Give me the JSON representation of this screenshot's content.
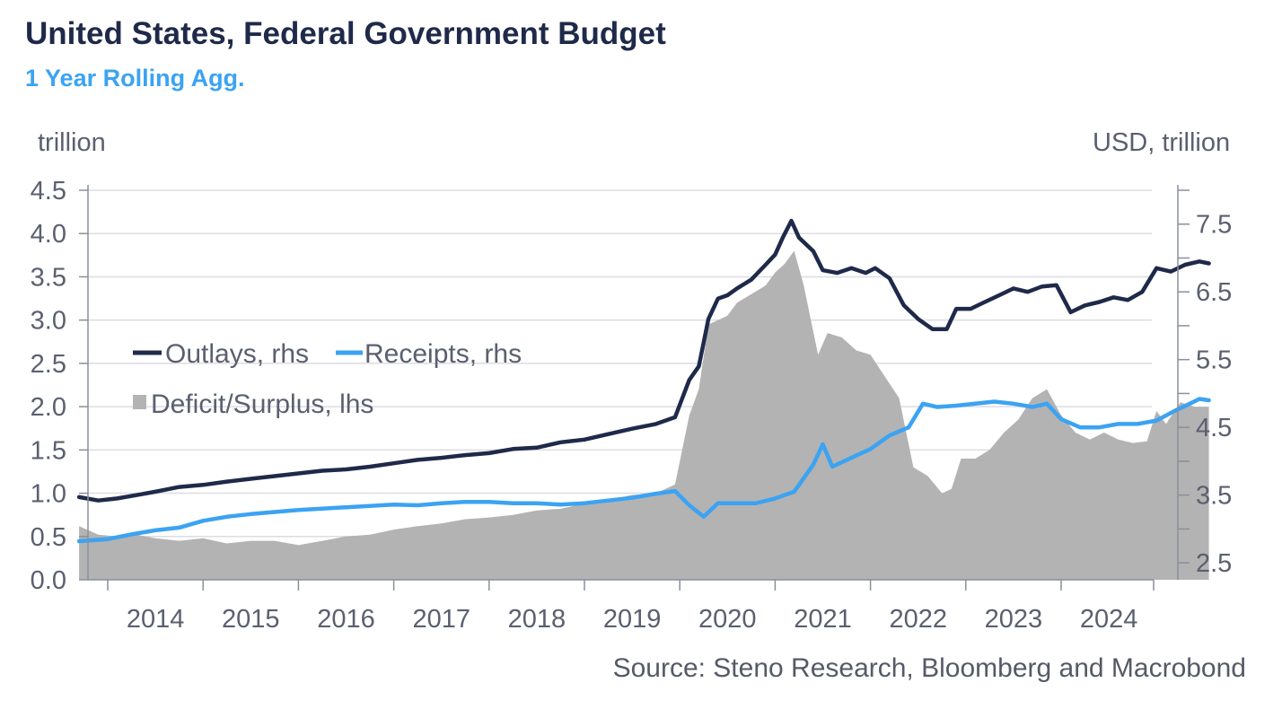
{
  "title": "United States, Federal Government Budget",
  "subtitle": "1 Year Rolling Agg.",
  "source": "Source: Steno Research, Bloomberg and Macrobond",
  "chart_data": {
    "type": "line",
    "left_axis": {
      "label": "trillion",
      "min": 0,
      "max": 4.5,
      "ticks": [
        "0.0",
        "0.5",
        "1.0",
        "1.5",
        "2.0",
        "2.5",
        "3.0",
        "3.5",
        "4.0",
        "4.5"
      ]
    },
    "right_axis": {
      "label": "USD, trillion",
      "min": 2.25,
      "max": 8.0,
      "ticks": [
        "2.5",
        "3.5",
        "4.5",
        "5.5",
        "6.5",
        "7.5"
      ]
    },
    "x_axis": {
      "ticks": [
        "2014",
        "2015",
        "2016",
        "2017",
        "2018",
        "2019",
        "2020",
        "2021",
        "2022",
        "2023",
        "2024"
      ]
    },
    "grid": true,
    "legend": [
      {
        "label": "Outlays, rhs",
        "color": "#1f2a4a",
        "kind": "line"
      },
      {
        "label": "Receipts, rhs",
        "color": "#3ba3f2",
        "kind": "line"
      },
      {
        "label": "Deficit/Surplus, lhs",
        "color": "#b3b3b3",
        "kind": "area"
      }
    ],
    "series": [
      {
        "name": "Outlays, rhs",
        "axis": "right",
        "color": "#1f2a4a",
        "points": [
          [
            2013.7,
            3.47
          ],
          [
            2013.9,
            3.42
          ],
          [
            2014.1,
            3.45
          ],
          [
            2014.3,
            3.5
          ],
          [
            2014.5,
            3.55
          ],
          [
            2014.75,
            3.62
          ],
          [
            2015.0,
            3.65
          ],
          [
            2015.25,
            3.7
          ],
          [
            2015.5,
            3.74
          ],
          [
            2015.75,
            3.78
          ],
          [
            2016.0,
            3.82
          ],
          [
            2016.25,
            3.86
          ],
          [
            2016.5,
            3.88
          ],
          [
            2016.75,
            3.92
          ],
          [
            2017.0,
            3.97
          ],
          [
            2017.25,
            4.02
          ],
          [
            2017.5,
            4.05
          ],
          [
            2017.75,
            4.09
          ],
          [
            2018.0,
            4.12
          ],
          [
            2018.25,
            4.18
          ],
          [
            2018.5,
            4.2
          ],
          [
            2018.75,
            4.28
          ],
          [
            2019.0,
            4.32
          ],
          [
            2019.25,
            4.4
          ],
          [
            2019.5,
            4.48
          ],
          [
            2019.75,
            4.55
          ],
          [
            2019.95,
            4.65
          ],
          [
            2020.1,
            5.2
          ],
          [
            2020.2,
            5.4
          ],
          [
            2020.3,
            6.1
          ],
          [
            2020.4,
            6.4
          ],
          [
            2020.5,
            6.45
          ],
          [
            2020.6,
            6.55
          ],
          [
            2020.75,
            6.68
          ],
          [
            2020.9,
            6.9
          ],
          [
            2021.0,
            7.05
          ],
          [
            2021.08,
            7.3
          ],
          [
            2021.17,
            7.55
          ],
          [
            2021.25,
            7.3
          ],
          [
            2021.4,
            7.1
          ],
          [
            2021.5,
            6.82
          ],
          [
            2021.65,
            6.78
          ],
          [
            2021.8,
            6.85
          ],
          [
            2021.95,
            6.78
          ],
          [
            2022.05,
            6.85
          ],
          [
            2022.2,
            6.7
          ],
          [
            2022.35,
            6.3
          ],
          [
            2022.5,
            6.1
          ],
          [
            2022.65,
            5.95
          ],
          [
            2022.8,
            5.95
          ],
          [
            2022.9,
            6.25
          ],
          [
            2023.05,
            6.25
          ],
          [
            2023.2,
            6.35
          ],
          [
            2023.35,
            6.45
          ],
          [
            2023.5,
            6.55
          ],
          [
            2023.65,
            6.5
          ],
          [
            2023.8,
            6.58
          ],
          [
            2023.95,
            6.6
          ],
          [
            2024.1,
            6.2
          ],
          [
            2024.25,
            6.3
          ],
          [
            2024.4,
            6.35
          ],
          [
            2024.55,
            6.42
          ],
          [
            2024.7,
            6.38
          ],
          [
            2024.85,
            6.5
          ],
          [
            2025.0,
            6.85
          ],
          [
            2025.15,
            6.8
          ],
          [
            2025.3,
            6.9
          ],
          [
            2025.45,
            6.95
          ],
          [
            2025.55,
            6.92
          ]
        ]
      },
      {
        "name": "Receipts, rhs",
        "axis": "right",
        "color": "#3ba3f2",
        "points": [
          [
            2013.7,
            2.82
          ],
          [
            2014.0,
            2.85
          ],
          [
            2014.25,
            2.92
          ],
          [
            2014.5,
            2.98
          ],
          [
            2014.75,
            3.02
          ],
          [
            2015.0,
            3.12
          ],
          [
            2015.25,
            3.18
          ],
          [
            2015.5,
            3.22
          ],
          [
            2015.75,
            3.25
          ],
          [
            2016.0,
            3.28
          ],
          [
            2016.25,
            3.3
          ],
          [
            2016.5,
            3.32
          ],
          [
            2016.75,
            3.34
          ],
          [
            2017.0,
            3.36
          ],
          [
            2017.25,
            3.35
          ],
          [
            2017.5,
            3.38
          ],
          [
            2017.75,
            3.4
          ],
          [
            2018.0,
            3.4
          ],
          [
            2018.25,
            3.38
          ],
          [
            2018.5,
            3.38
          ],
          [
            2018.75,
            3.36
          ],
          [
            2019.0,
            3.38
          ],
          [
            2019.25,
            3.42
          ],
          [
            2019.5,
            3.46
          ],
          [
            2019.75,
            3.52
          ],
          [
            2019.95,
            3.56
          ],
          [
            2020.1,
            3.35
          ],
          [
            2020.25,
            3.18
          ],
          [
            2020.4,
            3.38
          ],
          [
            2020.6,
            3.38
          ],
          [
            2020.8,
            3.38
          ],
          [
            2021.0,
            3.45
          ],
          [
            2021.2,
            3.55
          ],
          [
            2021.4,
            3.95
          ],
          [
            2021.5,
            4.25
          ],
          [
            2021.6,
            3.92
          ],
          [
            2021.8,
            4.05
          ],
          [
            2022.0,
            4.18
          ],
          [
            2022.2,
            4.38
          ],
          [
            2022.4,
            4.5
          ],
          [
            2022.55,
            4.85
          ],
          [
            2022.7,
            4.8
          ],
          [
            2022.9,
            4.82
          ],
          [
            2023.1,
            4.85
          ],
          [
            2023.3,
            4.88
          ],
          [
            2023.5,
            4.85
          ],
          [
            2023.7,
            4.8
          ],
          [
            2023.85,
            4.85
          ],
          [
            2024.0,
            4.62
          ],
          [
            2024.2,
            4.5
          ],
          [
            2024.4,
            4.5
          ],
          [
            2024.6,
            4.55
          ],
          [
            2024.8,
            4.55
          ],
          [
            2025.0,
            4.6
          ],
          [
            2025.2,
            4.75
          ],
          [
            2025.35,
            4.85
          ],
          [
            2025.45,
            4.92
          ],
          [
            2025.55,
            4.9
          ]
        ]
      },
      {
        "name": "Deficit/Surplus, lhs",
        "axis": "left",
        "color": "#b3b3b3",
        "points": [
          [
            2013.7,
            0.62
          ],
          [
            2013.9,
            0.52
          ],
          [
            2014.1,
            0.5
          ],
          [
            2014.3,
            0.52
          ],
          [
            2014.5,
            0.48
          ],
          [
            2014.75,
            0.45
          ],
          [
            2015.0,
            0.48
          ],
          [
            2015.25,
            0.42
          ],
          [
            2015.5,
            0.45
          ],
          [
            2015.75,
            0.45
          ],
          [
            2016.0,
            0.4
          ],
          [
            2016.25,
            0.45
          ],
          [
            2016.5,
            0.5
          ],
          [
            2016.75,
            0.52
          ],
          [
            2017.0,
            0.58
          ],
          [
            2017.25,
            0.62
          ],
          [
            2017.5,
            0.65
          ],
          [
            2017.75,
            0.7
          ],
          [
            2018.0,
            0.72
          ],
          [
            2018.25,
            0.75
          ],
          [
            2018.5,
            0.8
          ],
          [
            2018.75,
            0.82
          ],
          [
            2019.0,
            0.88
          ],
          [
            2019.25,
            0.92
          ],
          [
            2019.5,
            0.98
          ],
          [
            2019.75,
            1.0
          ],
          [
            2019.95,
            1.1
          ],
          [
            2020.1,
            1.9
          ],
          [
            2020.2,
            2.2
          ],
          [
            2020.3,
            2.95
          ],
          [
            2020.4,
            3.0
          ],
          [
            2020.5,
            3.05
          ],
          [
            2020.6,
            3.2
          ],
          [
            2020.75,
            3.3
          ],
          [
            2020.9,
            3.4
          ],
          [
            2021.0,
            3.55
          ],
          [
            2021.1,
            3.65
          ],
          [
            2021.2,
            3.8
          ],
          [
            2021.3,
            3.4
          ],
          [
            2021.45,
            2.6
          ],
          [
            2021.55,
            2.85
          ],
          [
            2021.7,
            2.8
          ],
          [
            2021.85,
            2.65
          ],
          [
            2022.0,
            2.6
          ],
          [
            2022.15,
            2.35
          ],
          [
            2022.3,
            2.1
          ],
          [
            2022.45,
            1.3
          ],
          [
            2022.6,
            1.2
          ],
          [
            2022.75,
            1.0
          ],
          [
            2022.85,
            1.05
          ],
          [
            2022.95,
            1.4
          ],
          [
            2023.1,
            1.4
          ],
          [
            2023.25,
            1.5
          ],
          [
            2023.4,
            1.7
          ],
          [
            2023.55,
            1.85
          ],
          [
            2023.7,
            2.1
          ],
          [
            2023.85,
            2.2
          ],
          [
            2024.0,
            1.9
          ],
          [
            2024.15,
            1.7
          ],
          [
            2024.3,
            1.62
          ],
          [
            2024.45,
            1.7
          ],
          [
            2024.6,
            1.62
          ],
          [
            2024.75,
            1.58
          ],
          [
            2024.9,
            1.6
          ],
          [
            2025.0,
            1.95
          ],
          [
            2025.1,
            1.8
          ],
          [
            2025.25,
            2.05
          ],
          [
            2025.4,
            2.0
          ],
          [
            2025.55,
            2.0
          ]
        ]
      }
    ]
  }
}
